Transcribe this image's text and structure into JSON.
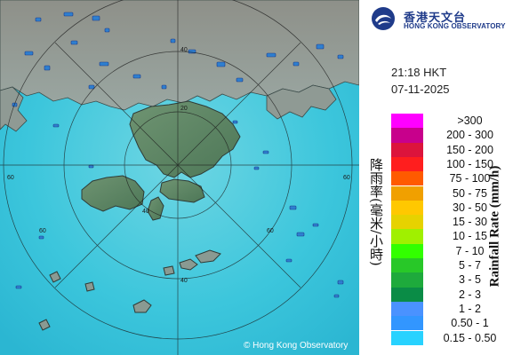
{
  "logo": {
    "zh": "香港天文台",
    "en": "HONG KONG OBSERVATORY"
  },
  "time": "21:18 HKT",
  "date": "07-11-2025",
  "legend": {
    "title_zh": "降雨率(毫米/小時)",
    "title_en": "Rainfall Rate (mm/h)",
    "items": [
      {
        "label": ">300",
        "color": "#ff00ff"
      },
      {
        "label": "200 - 300",
        "color": "#c8008c"
      },
      {
        "label": "150 - 200",
        "color": "#dc143c"
      },
      {
        "label": "100 - 150",
        "color": "#ff1e1e"
      },
      {
        "label": "75 - 100",
        "color": "#ff5a00"
      },
      {
        "label": "50 - 75",
        "color": "#f0a000"
      },
      {
        "label": "30 - 50",
        "color": "#ffc800"
      },
      {
        "label": "15 - 30",
        "color": "#e6d200"
      },
      {
        "label": "10 - 15",
        "color": "#a0f000"
      },
      {
        "label": "7 - 10",
        "color": "#32ff00"
      },
      {
        "label": "5 - 7",
        "color": "#28c828"
      },
      {
        "label": "3 - 5",
        "color": "#1eaa3c"
      },
      {
        "label": "2 - 3",
        "color": "#0a8c46"
      },
      {
        "label": "1 - 2",
        "color": "#4a92ff"
      },
      {
        "label": "0.50 - 1",
        "color": "#3296ff"
      },
      {
        "label": "0.15 - 0.50",
        "color": "#28d2ff"
      }
    ]
  },
  "map": {
    "ring_labels": [
      "20",
      "40",
      "60",
      "60",
      "60",
      "60",
      "40",
      "40"
    ],
    "colors": {
      "sea": "#38c3db",
      "land": "#8a9a92",
      "echo": "#2e7fd0"
    }
  },
  "credit": "© Hong Kong Observatory"
}
